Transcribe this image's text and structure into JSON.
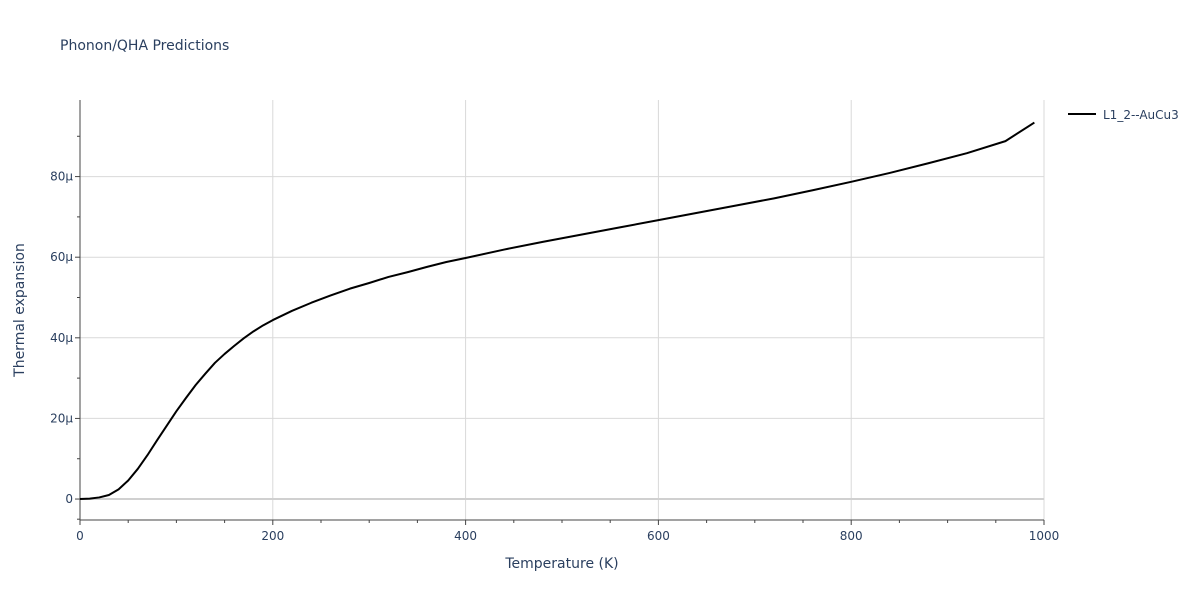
{
  "chart_data": {
    "type": "line",
    "title": "Phonon/QHA Predictions",
    "xlabel": "Temperature (K)",
    "ylabel": "Thermal expansion",
    "xlim": [
      0,
      1000
    ],
    "ylim": [
      -5.2e-06,
      9.9e-05
    ],
    "x_ticks": [
      0,
      200,
      400,
      600,
      800,
      1000
    ],
    "x_tick_labels": [
      "0",
      "200",
      "400",
      "600",
      "800",
      "1000"
    ],
    "y_ticks": [
      0,
      2e-05,
      4e-05,
      6e-05,
      8e-05
    ],
    "y_tick_labels": [
      "0",
      "20μ",
      "40μ",
      "60μ",
      "80μ"
    ],
    "grid": true,
    "legend_position": "top-right",
    "series": [
      {
        "name": "L1_2--AuCu3",
        "color": "#000000",
        "x": [
          0,
          10,
          20,
          30,
          40,
          50,
          60,
          70,
          80,
          90,
          100,
          110,
          120,
          130,
          140,
          150,
          160,
          170,
          180,
          190,
          200,
          220,
          240,
          260,
          280,
          300,
          320,
          340,
          360,
          380,
          400,
          440,
          480,
          520,
          560,
          600,
          640,
          680,
          720,
          760,
          800,
          840,
          880,
          920,
          960,
          990
        ],
        "y": [
          0,
          1e-07,
          4e-07,
          1e-06,
          2.4e-06,
          4.6e-06,
          7.5e-06,
          1.09e-05,
          1.46e-05,
          1.82e-05,
          2.18e-05,
          2.51e-05,
          2.83e-05,
          3.11e-05,
          3.38e-05,
          3.6e-05,
          3.8e-05,
          3.99e-05,
          4.16e-05,
          4.31e-05,
          4.44e-05,
          4.67e-05,
          4.87e-05,
          5.05e-05,
          5.22e-05,
          5.36e-05,
          5.51e-05,
          5.63e-05,
          5.76e-05,
          5.88e-05,
          5.98e-05,
          6.19e-05,
          6.38e-05,
          6.56e-05,
          6.74e-05,
          6.92e-05,
          7.1e-05,
          7.28e-05,
          7.46e-05,
          7.66e-05,
          7.87e-05,
          8.09e-05,
          8.33e-05,
          8.58e-05,
          8.88e-05,
          9.34e-05
        ]
      }
    ]
  }
}
